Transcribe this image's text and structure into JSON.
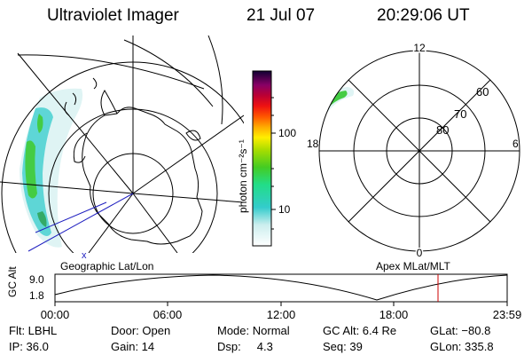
{
  "header": {
    "instrument": "Ultraviolet Imager",
    "date": "21 Jul 07",
    "time": "20:29:06 UT"
  },
  "colorbar": {
    "unit_label": "photon cm⁻²s⁻¹",
    "ticks": [
      "100",
      "10"
    ]
  },
  "apex_grid": {
    "mlt_labels": {
      "top": "12",
      "bottom": "0",
      "left": "18",
      "right": "6"
    },
    "mlat_labels": [
      "60",
      "70",
      "80"
    ]
  },
  "panel_titles": {
    "left": "Geographic Lat/Lon",
    "right": "Apex MLat/MLT"
  },
  "timeline": {
    "axis_label": "GC Alt",
    "y_ticks": [
      "9.0",
      "1.8"
    ],
    "x_ticks": [
      "00:00",
      "06:00",
      "12:00",
      "18:00",
      "23:59"
    ],
    "current_time": "20:29"
  },
  "status": {
    "row1": {
      "filter": "Flt: LBHL",
      "door": "Door: Open",
      "mode": "Mode: Normal",
      "gc_alt": "GC Alt: 6.4 Re",
      "glat": "GLat: −80.8"
    },
    "row2": {
      "ip": "IP: 36.0",
      "gain": "Gain: 14",
      "dsp": "Dsp:     4.3",
      "seq": "Seq: 39",
      "glon": "GLon: 335.8"
    }
  },
  "colors": {
    "background": "#ffffff",
    "lines": "#000000",
    "terminator": "#2020c0",
    "current_time_marker": "#cc0000",
    "aurora_green": "#44cc44",
    "aurora_cyan": "#33cccc"
  }
}
